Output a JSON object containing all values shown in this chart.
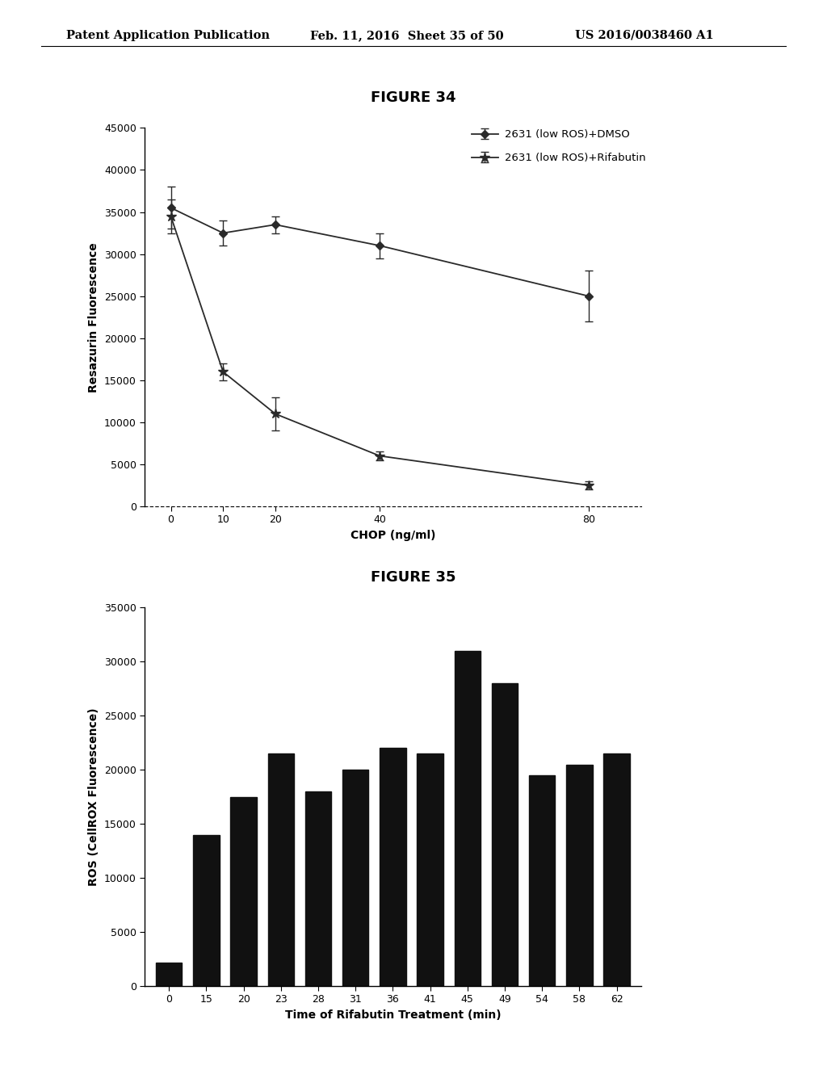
{
  "fig34": {
    "title": "FIGURE 34",
    "xlabel": "CHOP (ng/ml)",
    "ylabel": "Resazurin Fluorescence",
    "x": [
      0,
      10,
      20,
      40,
      80
    ],
    "dmso_y": [
      35500,
      32500,
      33500,
      31000,
      25000
    ],
    "dmso_yerr": [
      2500,
      1500,
      1000,
      1500,
      3000
    ],
    "rifa_y": [
      34500,
      16000,
      11000,
      6000,
      2500
    ],
    "rifa_yerr": [
      2000,
      1000,
      2000,
      500,
      500
    ],
    "ylim": [
      0,
      45000
    ],
    "yticks": [
      0,
      5000,
      10000,
      15000,
      20000,
      25000,
      30000,
      35000,
      40000,
      45000
    ],
    "xticks": [
      0,
      10,
      20,
      40,
      80
    ],
    "legend1": "2631 (low ROS)+DMSO",
    "legend2": "2631 (low ROS)+Rifabutin",
    "line_color": "#2a2a2a"
  },
  "fig35": {
    "title": "FIGURE 35",
    "xlabel": "Time of Rifabutin Treatment (min)",
    "ylabel": "ROS (CellROX Fluorescence)",
    "x_labels": [
      "0",
      "15",
      "20",
      "23",
      "28",
      "31",
      "36",
      "41",
      "45",
      "49",
      "54",
      "58",
      "62"
    ],
    "values": [
      2200,
      14000,
      17500,
      21500,
      18000,
      20000,
      22000,
      21500,
      31000,
      28000,
      19500,
      20500,
      21500
    ],
    "ylim": [
      0,
      35000
    ],
    "yticks": [
      0,
      5000,
      10000,
      15000,
      20000,
      25000,
      30000,
      35000
    ],
    "bar_color": "#111111"
  },
  "header_left": "Patent Application Publication",
  "header_mid": "Feb. 11, 2016  Sheet 35 of 50",
  "header_right": "US 2016/0038460 A1",
  "bg_color": "#ffffff",
  "text_color": "#000000"
}
